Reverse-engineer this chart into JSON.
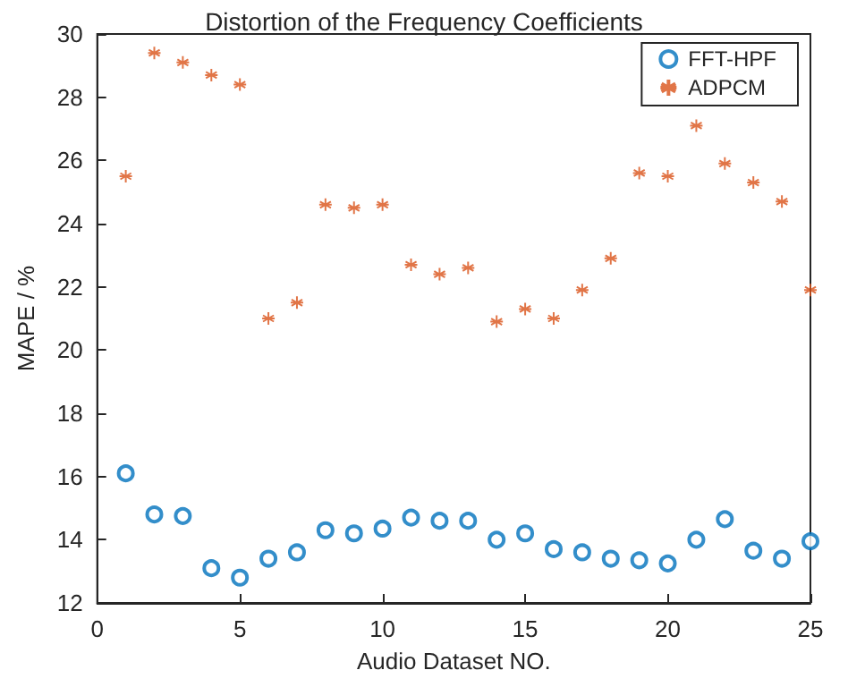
{
  "chart_data": {
    "type": "scatter",
    "title": "Distortion of the Frequency Coefficients",
    "xlabel": "Audio Dataset NO.",
    "ylabel": "MAPE / %",
    "x": [
      1,
      2,
      3,
      4,
      5,
      6,
      7,
      8,
      9,
      10,
      11,
      12,
      13,
      14,
      15,
      16,
      17,
      18,
      19,
      20,
      21,
      22,
      23,
      24,
      25
    ],
    "series": [
      {
        "name": "FFT-HPF",
        "color": "#0072bd",
        "marker": "circle",
        "values": [
          16.1,
          14.8,
          14.75,
          13.1,
          12.8,
          13.4,
          13.6,
          14.3,
          14.2,
          14.35,
          14.7,
          14.6,
          14.6,
          14.0,
          14.2,
          13.7,
          13.6,
          13.4,
          13.35,
          13.25,
          14.0,
          14.65,
          13.65,
          13.4,
          13.95
        ]
      },
      {
        "name": "ADPCM",
        "color": "#d95319",
        "marker": "cross",
        "values": [
          25.5,
          29.4,
          29.1,
          28.7,
          28.4,
          21.0,
          21.5,
          24.6,
          24.5,
          24.6,
          22.7,
          22.4,
          22.6,
          20.9,
          21.3,
          21.0,
          21.9,
          22.9,
          25.6,
          25.5,
          27.1,
          25.9,
          25.3,
          24.7,
          21.9
        ]
      }
    ],
    "xlim": [
      0,
      25
    ],
    "xticks": [
      0,
      5,
      10,
      15,
      20,
      25
    ],
    "ylim": [
      12,
      30
    ],
    "yticks": [
      12,
      14,
      16,
      18,
      20,
      22,
      24,
      26,
      28,
      30
    ],
    "grid": false,
    "legend": "top right"
  }
}
